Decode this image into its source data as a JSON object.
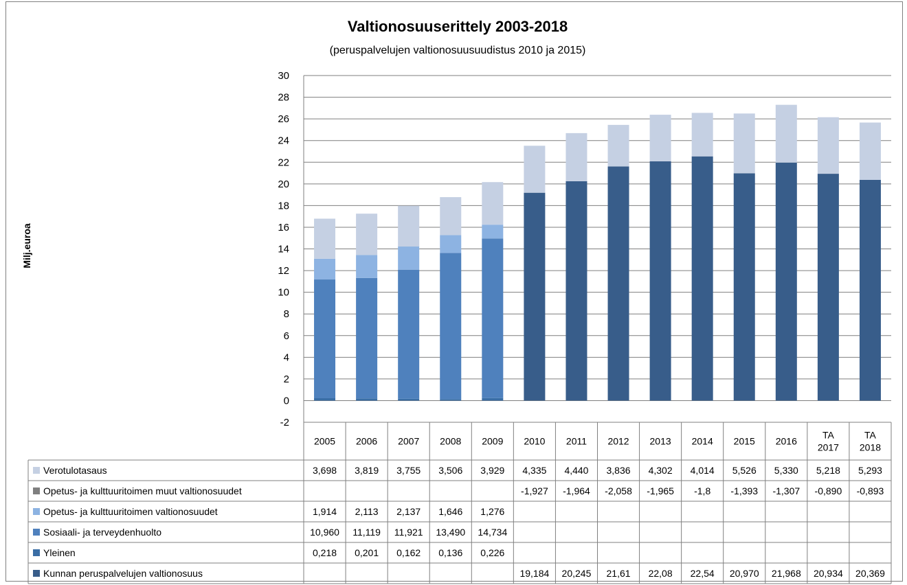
{
  "colors": {
    "verotulotasaus": "#c5d0e3",
    "opetus_muut": "#7f7f7f",
    "opetus_vos": "#8db3e2",
    "sosiaali": "#4f81bd",
    "yleinen": "#3a6ea5",
    "kunnan": "#385d8a",
    "grid": "#7f7f7f"
  },
  "chart_data": {
    "type": "bar",
    "stacked": true,
    "title": "Valtionosuuserittely 2003-2018",
    "subtitle": "(peruspalvelujen valtionosuusuudistus 2010 ja 2015)",
    "ylabel": "Milj.euroa",
    "ylim": [
      -2,
      30
    ],
    "yticks": [
      "30",
      "28",
      "26",
      "24",
      "22",
      "20",
      "18",
      "16",
      "14",
      "12",
      "10",
      "8",
      "6",
      "4",
      "2",
      "0",
      "-2"
    ],
    "grid": true,
    "categories": [
      [
        "2005"
      ],
      [
        "2006"
      ],
      [
        "2007"
      ],
      [
        "2008"
      ],
      [
        "2009"
      ],
      [
        "2010"
      ],
      [
        "2011"
      ],
      [
        "2012"
      ],
      [
        "2013"
      ],
      [
        "2014"
      ],
      [
        "2015"
      ],
      [
        "2016"
      ],
      [
        "TA",
        "2017"
      ],
      [
        "TA",
        "2018"
      ]
    ],
    "series": [
      {
        "name": "Verotulotasaus",
        "color": "#c5d0e3",
        "values": [
          3.698,
          3.819,
          3.755,
          3.506,
          3.929,
          4.335,
          4.44,
          3.836,
          4.302,
          4.014,
          5.526,
          5.33,
          5.218,
          5.293
        ],
        "labels": [
          "3,698",
          "3,819",
          "3,755",
          "3,506",
          "3,929",
          "4,335",
          "4,440",
          "3,836",
          "4,302",
          "4,014",
          "5,526",
          "5,330",
          "5,218",
          "5,293"
        ]
      },
      {
        "name": "Opetus- ja kulttuuritoimen muut valtionosuudet",
        "color": "#7f7f7f",
        "values": [
          null,
          null,
          null,
          null,
          null,
          -1.927,
          -1.964,
          -2.058,
          -1.965,
          -1.8,
          -1.393,
          -1.307,
          -0.89,
          -0.893
        ],
        "labels": [
          "",
          "",
          "",
          "",
          "",
          "-1,927",
          "-1,964",
          "-2,058",
          "-1,965",
          "-1,8",
          "-1,393",
          "-1,307",
          "-0,890",
          "-0,893"
        ]
      },
      {
        "name": "Opetus- ja kulttuuritoimen valtionosuudet",
        "color": "#8db3e2",
        "values": [
          1.914,
          2.113,
          2.137,
          1.646,
          1.276,
          null,
          null,
          null,
          null,
          null,
          null,
          null,
          null,
          null
        ],
        "labels": [
          "1,914",
          "2,113",
          "2,137",
          "1,646",
          "1,276",
          "",
          "",
          "",
          "",
          "",
          "",
          "",
          "",
          ""
        ]
      },
      {
        "name": "Sosiaali- ja terveydenhuolto",
        "color": "#4f81bd",
        "values": [
          10.96,
          11.119,
          11.921,
          13.49,
          14.734,
          null,
          null,
          null,
          null,
          null,
          null,
          null,
          null,
          null
        ],
        "labels": [
          "10,960",
          "11,119",
          "11,921",
          "13,490",
          "14,734",
          "",
          "",
          "",
          "",
          "",
          "",
          "",
          "",
          ""
        ]
      },
      {
        "name": "Yleinen",
        "color": "#3a6ea5",
        "values": [
          0.218,
          0.201,
          0.162,
          0.136,
          0.226,
          null,
          null,
          null,
          null,
          null,
          null,
          null,
          null,
          null
        ],
        "labels": [
          "0,218",
          "0,201",
          "0,162",
          "0,136",
          "0,226",
          "",
          "",
          "",
          "",
          "",
          "",
          "",
          "",
          ""
        ]
      },
      {
        "name": "Kunnan peruspalvelujen valtionosuus",
        "color": "#385d8a",
        "values": [
          null,
          null,
          null,
          null,
          null,
          19.184,
          20.245,
          21.61,
          22.08,
          22.54,
          20.97,
          21.968,
          20.934,
          20.369
        ],
        "labels": [
          "",
          "",
          "",
          "",
          "",
          "19,184",
          "20,245",
          "21,61",
          "22,08",
          "22,54",
          "20,970",
          "21,968",
          "20,934",
          "20,369"
        ]
      }
    ],
    "stack_order": [
      4,
      3,
      2,
      5,
      0
    ]
  }
}
